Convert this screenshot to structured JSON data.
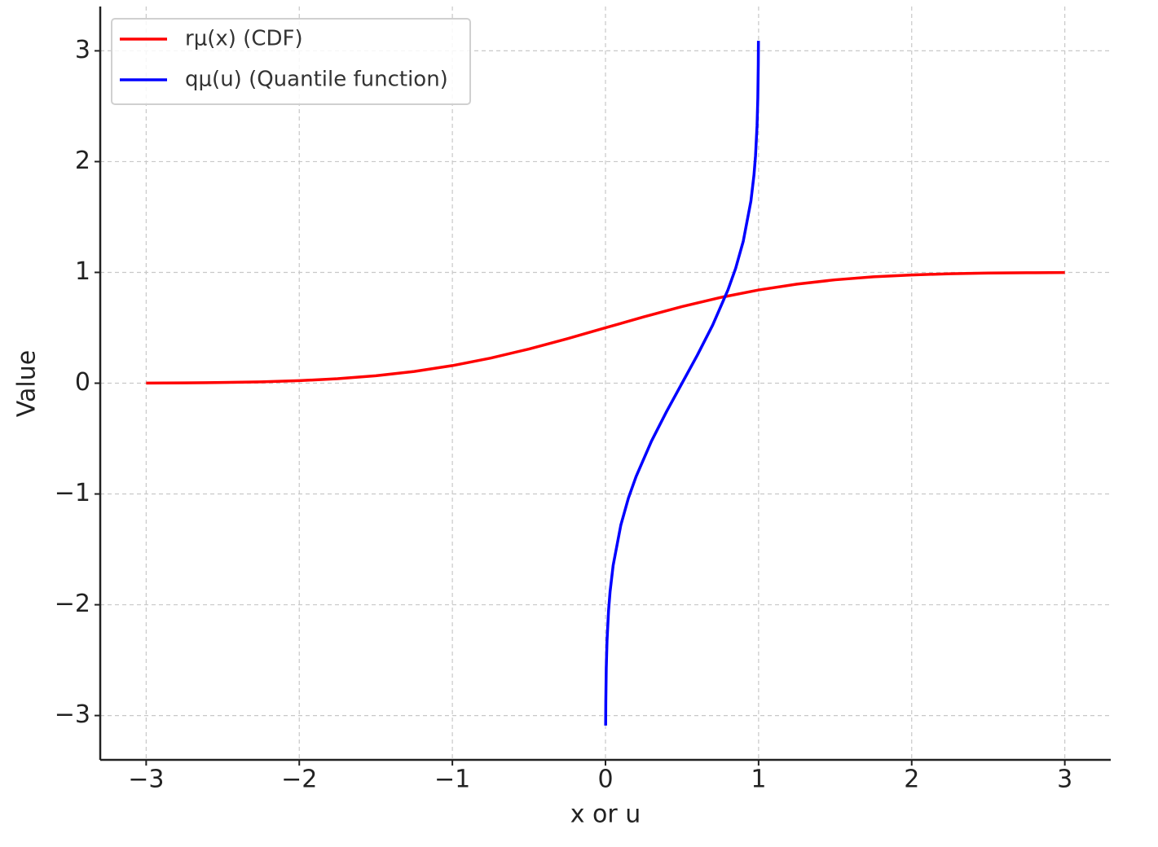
{
  "chart_data": {
    "type": "line",
    "x_label": "x or u",
    "y_label": "Value",
    "series": [
      {
        "name": "rμ(x) (CDF)",
        "color": "#ff0000",
        "x": [
          -3,
          -2.75,
          -2.5,
          -2.25,
          -2,
          -1.75,
          -1.5,
          -1.25,
          -1,
          -0.75,
          -0.5,
          -0.25,
          0,
          0.25,
          0.5,
          0.75,
          1,
          1.25,
          1.5,
          1.75,
          2,
          2.25,
          2.5,
          2.75,
          3
        ],
        "values": [
          0.0013,
          0.003,
          0.0062,
          0.0122,
          0.0228,
          0.0401,
          0.0668,
          0.1056,
          0.1587,
          0.2266,
          0.3085,
          0.4013,
          0.5,
          0.5987,
          0.6915,
          0.7734,
          0.8413,
          0.8944,
          0.9332,
          0.9599,
          0.9772,
          0.9878,
          0.9938,
          0.997,
          0.9987
        ]
      },
      {
        "name": "qμ(u) (Quantile function)",
        "color": "#0000ff",
        "x": [
          0.001,
          0.002,
          0.005,
          0.01,
          0.02,
          0.03,
          0.05,
          0.1,
          0.15,
          0.2,
          0.3,
          0.4,
          0.5,
          0.6,
          0.7,
          0.8,
          0.85,
          0.9,
          0.95,
          0.97,
          0.98,
          0.99,
          0.995,
          0.998,
          0.999
        ],
        "values": [
          -3.09,
          -2.878,
          -2.576,
          -2.326,
          -2.054,
          -1.881,
          -1.645,
          -1.282,
          -1.036,
          -0.842,
          -0.524,
          -0.253,
          0,
          0.253,
          0.524,
          0.842,
          1.036,
          1.282,
          1.645,
          1.881,
          2.054,
          2.326,
          2.576,
          2.878,
          3.09
        ]
      }
    ],
    "xlim": [
      -3.3,
      3.3
    ],
    "ylim": [
      -3.4,
      3.4
    ],
    "xticks": [
      {
        "value": -3,
        "label": "−3"
      },
      {
        "value": -2,
        "label": "−2"
      },
      {
        "value": -1,
        "label": "−1"
      },
      0,
      1,
      2,
      3
    ],
    "yticks": [
      {
        "value": -3,
        "label": "−3"
      },
      {
        "value": -2,
        "label": "−2"
      },
      {
        "value": -1,
        "label": "−1"
      },
      0,
      1,
      2,
      3
    ],
    "grid": true,
    "legend": "upper-left"
  }
}
